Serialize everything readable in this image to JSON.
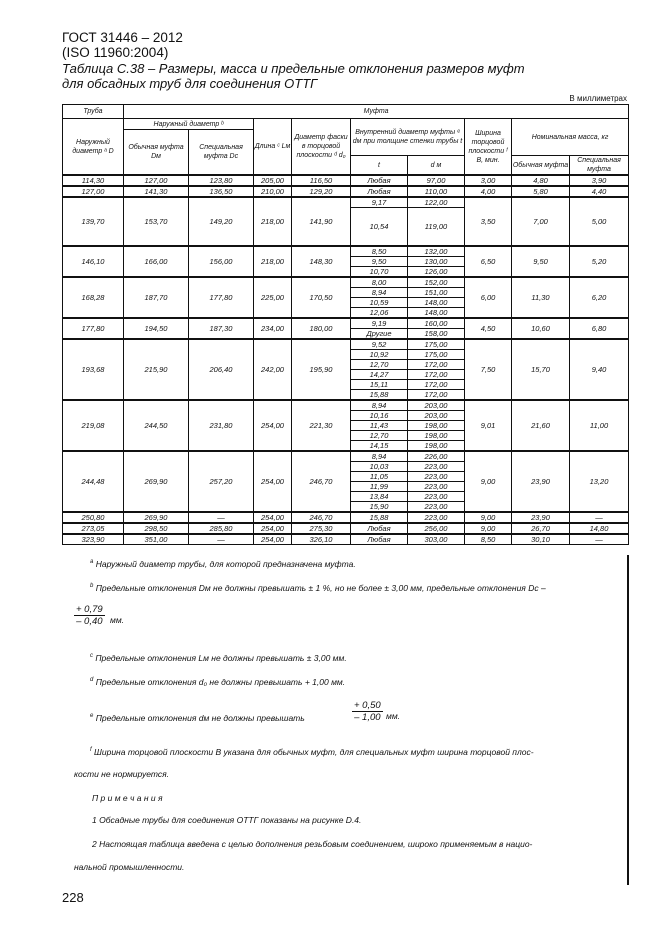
{
  "header": {
    "standard": "ГОСТ 31446 – 2012",
    "iso": "(ISO 11960:2004)",
    "title_line1": "Таблица С.38 – Размеры, масса и предельные отклонения размеров муфт",
    "title_line2": "для обсадных труб для соединения ОТТГ",
    "units": "В миллиметрах"
  },
  "columns": {
    "pipe": "Труба",
    "coupling": "Муфта",
    "outer_d": "Наружный диаметр ᵃ D",
    "coupling_od": "Наружный диаметр ᵇ",
    "regular_od": "Обычная муфта Dм",
    "special_od": "Специальная муфта Dс",
    "length": "Длина ᶜ Lм",
    "chamfer": "Диаметр фаски в торцовой плоскости ᵈ d₀",
    "inner": "Внутренний диаметр муфты ᵉ dм при толщине стенки трубы t",
    "t": "t",
    "dm": "d м",
    "width": "Ширина торцовой плоскости ᶠ B, мин.",
    "mass": "Номинальная масса, кг",
    "mass_regular": "Обычная муфта",
    "mass_special": "Специальная муфта"
  },
  "rows": [
    {
      "D": "114,30",
      "Dm": "127,00",
      "Dc": "123,80",
      "L": "205,00",
      "d0": "116,50",
      "sub": [
        [
          "Любая",
          "97,00"
        ]
      ],
      "B": "3,00",
      "m1": "4,80",
      "m2": "3,90"
    },
    {
      "D": "127,00",
      "Dm": "141,30",
      "Dc": "136,50",
      "L": "210,00",
      "d0": "129,20",
      "sub": [
        [
          "Любая",
          "110,00"
        ]
      ],
      "B": "4,00",
      "m1": "5,80",
      "m2": "4,40"
    },
    {
      "D": "139,70",
      "Dm": "153,70",
      "Dc": "149,20",
      "L": "218,00",
      "d0": "141,90",
      "sub": [
        [
          "9,17",
          "122,00"
        ],
        [
          "10,54",
          "119,00"
        ]
      ],
      "B": "3,50",
      "m1": "7,00",
      "m2": "5,00"
    },
    {
      "D": "146,10",
      "Dm": "166,00",
      "Dc": "156,00",
      "L": "218,00",
      "d0": "148,30",
      "sub": [
        [
          "8,50",
          "132,00"
        ],
        [
          "9,50",
          "130,00"
        ],
        [
          "10,70",
          "126,00"
        ]
      ],
      "B": "6,50",
      "m1": "9,50",
      "m2": "5,20"
    },
    {
      "D": "168,28",
      "Dm": "187,70",
      "Dc": "177,80",
      "L": "225,00",
      "d0": "170,50",
      "sub": [
        [
          "8,00",
          "152,00"
        ],
        [
          "8,94",
          "151,00"
        ],
        [
          "10,59",
          "148,00"
        ],
        [
          "12,06",
          "148,00"
        ]
      ],
      "B": "6,00",
      "m1": "11,30",
      "m2": "6,20"
    },
    {
      "D": "177,80",
      "Dm": "194,50",
      "Dc": "187,30",
      "L": "234,00",
      "d0": "180,00",
      "sub": [
        [
          "9,19",
          "160,00"
        ],
        [
          "Другие",
          "158,00"
        ]
      ],
      "B": "4,50",
      "m1": "10,60",
      "m2": "6,80"
    },
    {
      "D": "193,68",
      "Dm": "215,90",
      "Dc": "206,40",
      "L": "242,00",
      "d0": "195,90",
      "sub": [
        [
          "9,52",
          "175,00"
        ],
        [
          "10,92",
          "175,00"
        ],
        [
          "12,70",
          "172,00"
        ],
        [
          "14,27",
          "172,00"
        ],
        [
          "15,11",
          "172,00"
        ],
        [
          "15,88",
          "172,00"
        ]
      ],
      "B": "7,50",
      "m1": "15,70",
      "m2": "9,40"
    },
    {
      "D": "219,08",
      "Dm": "244,50",
      "Dc": "231,80",
      "L": "254,00",
      "d0": "221,30",
      "sub": [
        [
          "8,94",
          "203,00"
        ],
        [
          "10,16",
          "203,00"
        ],
        [
          "11,43",
          "198,00"
        ],
        [
          "12,70",
          "198,00"
        ],
        [
          "14,15",
          "198,00"
        ]
      ],
      "B": "9,01",
      "m1": "21,60",
      "m2": "11,00"
    },
    {
      "D": "244,48",
      "Dm": "269,90",
      "Dc": "257,20",
      "L": "254,00",
      "d0": "246,70",
      "sub": [
        [
          "8,94",
          "226,00"
        ],
        [
          "10,03",
          "223,00"
        ],
        [
          "11,05",
          "223,00"
        ],
        [
          "11,99",
          "223,00"
        ],
        [
          "13,84",
          "223,00"
        ],
        [
          "15,90",
          "223,00"
        ]
      ],
      "B": "9,00",
      "m1": "23,90",
      "m2": "13,20"
    },
    {
      "D": "250,80",
      "Dm": "269,90",
      "Dc": "—",
      "L": "254,00",
      "d0": "246,70",
      "sub": [
        [
          "15,88",
          "223,00"
        ]
      ],
      "B": "9,00",
      "m1": "23,90",
      "m2": "—"
    },
    {
      "D": "273,05",
      "Dm": "298,50",
      "Dc": "285,80",
      "L": "254,00",
      "d0": "275,30",
      "sub": [
        [
          "Любая",
          "256,00"
        ]
      ],
      "B": "9,00",
      "m1": "26,70",
      "m2": "14,80"
    },
    {
      "D": "323,90",
      "Dm": "351,00",
      "Dc": "—",
      "L": "254,00",
      "d0": "326,10",
      "sub": [
        [
          "Любая",
          "303,00"
        ]
      ],
      "B": "8,50",
      "m1": "30,10",
      "m2": "—"
    }
  ],
  "footnotes": {
    "a": "Наружный диаметр трубы, для которой предназначена муфта.",
    "b": "Предельные отклонения  Dм не должны превышать ± 1 %, но не более  ± 3,00 мм, предельные отклонения Dс –",
    "b_upper": "+ 0,79",
    "b_lower": "– 0,40",
    "b_unit": "мм.",
    "c": "Предельные отклонения Lм не должны превышать ± 3,00 мм.",
    "d": "Предельные отклонения d₀ не должны превышать + 1,00 мм.",
    "e": "Предельные отклонения dм не должны превышать",
    "e_upper": "+ 0,50",
    "e_lower": "– 1,00",
    "e_unit": "мм.",
    "f_line1": "Ширина торцовой плоскости B указана для обычных муфт, для специальных муфт ширина торцовой плос-",
    "f_line2": "кости не нормируется.",
    "notes_title": "П р и м е ч а н и я",
    "note1": "1     Обсадные трубы для соединения ОТТГ показаны на рисунке D.4.",
    "note2_line1": "2   Настоящая таблица введена с целью дополнения резьбовым соединением, широко применяемым в нацио-",
    "note2_line2": "нальной промышленности."
  },
  "page_number": "228"
}
